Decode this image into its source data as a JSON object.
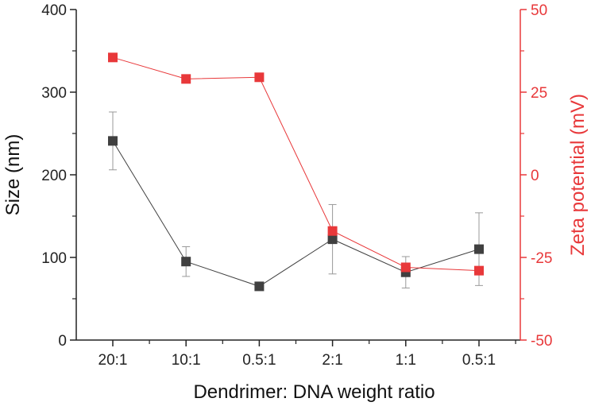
{
  "chart_data": {
    "type": "line",
    "xlabel": "Dendrimer: DNA weight ratio",
    "categories": [
      "20:1",
      "10:1",
      "0.5:1",
      "2:1",
      "1:1",
      "0.5:1"
    ],
    "left_axis": {
      "label": "Size (nm)",
      "ylim": [
        0,
        400
      ],
      "ticks": [
        "0",
        "100",
        "200",
        "300",
        "400"
      ],
      "tick_values": [
        0,
        100,
        200,
        300,
        400
      ]
    },
    "right_axis": {
      "label": "Zeta potential (mV)",
      "ylim": [
        -50,
        50
      ],
      "ticks": [
        "-50",
        "-25",
        "0",
        "25",
        "50"
      ],
      "tick_values": [
        -50,
        -25,
        0,
        25,
        50
      ]
    },
    "series": [
      {
        "name": "Size",
        "axis": "left",
        "color": "#404040",
        "values": [
          241,
          95,
          65,
          122,
          82,
          110
        ],
        "errors": [
          35,
          18,
          3,
          42,
          19,
          44
        ]
      },
      {
        "name": "Zeta potential",
        "axis": "right",
        "color": "#e8383a",
        "values": [
          35.5,
          29,
          29.5,
          -17,
          -28,
          -29
        ],
        "errors": [
          0,
          0,
          0,
          0,
          0,
          0
        ]
      }
    ]
  }
}
